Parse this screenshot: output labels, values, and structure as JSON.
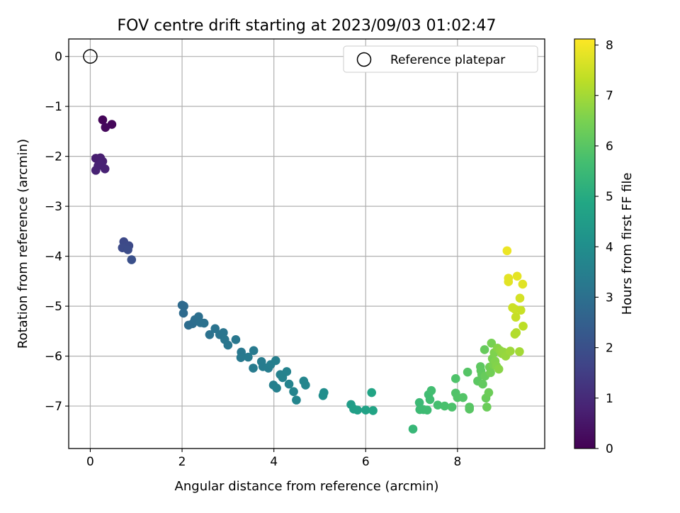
{
  "chart_data": {
    "type": "scatter",
    "title": "FOV centre drift starting at 2023/09/03 01:02:47",
    "xlabel": "Angular distance from reference (arcmin)",
    "ylabel": "Rotation from reference (arcmin)",
    "xlim": [
      -0.47,
      9.9
    ],
    "ylim": [
      -7.85,
      0.35
    ],
    "xticks": [
      0,
      2,
      4,
      6,
      8
    ],
    "xtick_labels": [
      "0",
      "2",
      "4",
      "6",
      "8"
    ],
    "yticks": [
      0,
      -1,
      -2,
      -3,
      -4,
      -5,
      -6,
      -7
    ],
    "ytick_labels": [
      "0",
      "−1",
      "−2",
      "−3",
      "−4",
      "−5",
      "−6",
      "−7"
    ],
    "grid": true,
    "legend": {
      "placement": "top-right",
      "entries": [
        "Reference platepar"
      ]
    },
    "reference_point": {
      "x": 0,
      "y": 0,
      "label": "Reference platepar"
    },
    "colorbar": {
      "label": "Hours from first FF file",
      "range": [
        0,
        8.12
      ],
      "ticks": [
        0,
        1,
        2,
        3,
        4,
        5,
        6,
        7,
        8
      ],
      "tick_labels": [
        "0",
        "1",
        "2",
        "3",
        "4",
        "5",
        "6",
        "7",
        "8"
      ],
      "colormap": "viridis"
    },
    "points": [
      {
        "x": 0.27,
        "y": -1.27,
        "h": 0.1
      },
      {
        "x": 0.47,
        "y": -1.36,
        "h": 0.15
      },
      {
        "x": 0.33,
        "y": -1.42,
        "h": 0.2
      },
      {
        "x": 0.12,
        "y": -2.04,
        "h": 0.7
      },
      {
        "x": 0.22,
        "y": -2.03,
        "h": 0.72
      },
      {
        "x": 0.27,
        "y": -2.1,
        "h": 0.75
      },
      {
        "x": 0.17,
        "y": -2.19,
        "h": 0.78
      },
      {
        "x": 0.32,
        "y": -2.25,
        "h": 0.8
      },
      {
        "x": 0.12,
        "y": -2.28,
        "h": 0.82
      },
      {
        "x": 0.22,
        "y": -2.16,
        "h": 0.8
      },
      {
        "x": 0.73,
        "y": -3.71,
        "h": 1.8
      },
      {
        "x": 0.84,
        "y": -3.79,
        "h": 1.82
      },
      {
        "x": 0.7,
        "y": -3.83,
        "h": 1.85
      },
      {
        "x": 0.82,
        "y": -3.87,
        "h": 1.88
      },
      {
        "x": 0.9,
        "y": -4.07,
        "h": 2.0
      },
      {
        "x": 2.0,
        "y": -4.98,
        "h": 2.8
      },
      {
        "x": 2.04,
        "y": -5.0,
        "h": 2.82
      },
      {
        "x": 2.03,
        "y": -5.14,
        "h": 2.85
      },
      {
        "x": 2.14,
        "y": -5.38,
        "h": 2.9
      },
      {
        "x": 2.23,
        "y": -5.35,
        "h": 2.92
      },
      {
        "x": 2.28,
        "y": -5.27,
        "h": 2.95
      },
      {
        "x": 2.36,
        "y": -5.21,
        "h": 2.97
      },
      {
        "x": 2.4,
        "y": -5.33,
        "h": 3.0
      },
      {
        "x": 2.48,
        "y": -5.34,
        "h": 3.02
      },
      {
        "x": 2.6,
        "y": -5.57,
        "h": 3.05
      },
      {
        "x": 2.72,
        "y": -5.45,
        "h": 3.1
      },
      {
        "x": 2.82,
        "y": -5.57,
        "h": 3.12
      },
      {
        "x": 2.9,
        "y": -5.53,
        "h": 3.15
      },
      {
        "x": 2.93,
        "y": -5.67,
        "h": 3.18
      },
      {
        "x": 3.0,
        "y": -5.78,
        "h": 3.2
      },
      {
        "x": 3.17,
        "y": -5.67,
        "h": 3.22
      },
      {
        "x": 3.29,
        "y": -5.92,
        "h": 3.25
      },
      {
        "x": 3.28,
        "y": -6.03,
        "h": 3.28
      },
      {
        "x": 3.44,
        "y": -6.02,
        "h": 3.3
      },
      {
        "x": 3.56,
        "y": -5.89,
        "h": 3.32
      },
      {
        "x": 3.55,
        "y": -6.24,
        "h": 3.35
      },
      {
        "x": 3.73,
        "y": -6.11,
        "h": 3.38
      },
      {
        "x": 3.76,
        "y": -6.21,
        "h": 3.4
      },
      {
        "x": 3.88,
        "y": -6.24,
        "h": 3.42
      },
      {
        "x": 3.93,
        "y": -6.17,
        "h": 3.45
      },
      {
        "x": 4.04,
        "y": -6.09,
        "h": 3.48
      },
      {
        "x": 3.99,
        "y": -6.58,
        "h": 3.5
      },
      {
        "x": 4.06,
        "y": -6.64,
        "h": 3.52
      },
      {
        "x": 4.14,
        "y": -6.37,
        "h": 3.55
      },
      {
        "x": 4.19,
        "y": -6.43,
        "h": 3.57
      },
      {
        "x": 4.28,
        "y": -6.31,
        "h": 3.6
      },
      {
        "x": 4.33,
        "y": -6.56,
        "h": 3.62
      },
      {
        "x": 4.43,
        "y": -6.71,
        "h": 3.65
      },
      {
        "x": 4.49,
        "y": -6.88,
        "h": 3.68
      },
      {
        "x": 4.65,
        "y": -6.5,
        "h": 3.7
      },
      {
        "x": 4.69,
        "y": -6.58,
        "h": 3.72
      },
      {
        "x": 5.09,
        "y": -6.73,
        "h": 3.95
      },
      {
        "x": 5.07,
        "y": -6.79,
        "h": 3.98
      },
      {
        "x": 5.68,
        "y": -6.97,
        "h": 4.5
      },
      {
        "x": 5.74,
        "y": -7.06,
        "h": 4.55
      },
      {
        "x": 5.82,
        "y": -7.08,
        "h": 4.58
      },
      {
        "x": 6.0,
        "y": -7.08,
        "h": 4.7
      },
      {
        "x": 6.13,
        "y": -6.73,
        "h": 4.75
      },
      {
        "x": 6.16,
        "y": -7.09,
        "h": 4.78
      },
      {
        "x": 7.03,
        "y": -7.46,
        "h": 5.4
      },
      {
        "x": 7.17,
        "y": -6.93,
        "h": 5.5
      },
      {
        "x": 7.18,
        "y": -7.07,
        "h": 5.52
      },
      {
        "x": 7.26,
        "y": -7.07,
        "h": 5.55
      },
      {
        "x": 7.34,
        "y": -7.08,
        "h": 5.57
      },
      {
        "x": 7.37,
        "y": -6.77,
        "h": 5.6
      },
      {
        "x": 7.4,
        "y": -6.87,
        "h": 5.62
      },
      {
        "x": 7.43,
        "y": -6.69,
        "h": 5.65
      },
      {
        "x": 7.57,
        "y": -6.98,
        "h": 5.7
      },
      {
        "x": 7.72,
        "y": -7.0,
        "h": 5.75
      },
      {
        "x": 7.88,
        "y": -7.02,
        "h": 5.8
      },
      {
        "x": 7.96,
        "y": -6.45,
        "h": 5.85
      },
      {
        "x": 7.96,
        "y": -6.74,
        "h": 5.87
      },
      {
        "x": 8.0,
        "y": -6.83,
        "h": 5.9
      },
      {
        "x": 8.12,
        "y": -6.83,
        "h": 5.92
      },
      {
        "x": 8.22,
        "y": -6.32,
        "h": 5.95
      },
      {
        "x": 8.26,
        "y": -7.02,
        "h": 5.97
      },
      {
        "x": 8.26,
        "y": -7.06,
        "h": 6.0
      },
      {
        "x": 8.44,
        "y": -6.5,
        "h": 6.05
      },
      {
        "x": 8.5,
        "y": -6.21,
        "h": 6.08
      },
      {
        "x": 8.51,
        "y": -6.29,
        "h": 6.1
      },
      {
        "x": 8.53,
        "y": -6.37,
        "h": 6.12
      },
      {
        "x": 8.55,
        "y": -6.56,
        "h": 6.15
      },
      {
        "x": 8.59,
        "y": -5.87,
        "h": 6.2
      },
      {
        "x": 8.6,
        "y": -6.4,
        "h": 6.22
      },
      {
        "x": 8.62,
        "y": -6.84,
        "h": 6.25
      },
      {
        "x": 8.64,
        "y": -7.02,
        "h": 6.28
      },
      {
        "x": 8.68,
        "y": -6.73,
        "h": 6.3
      },
      {
        "x": 8.7,
        "y": -6.22,
        "h": 6.35
      },
      {
        "x": 8.72,
        "y": -6.33,
        "h": 6.38
      },
      {
        "x": 8.74,
        "y": -5.74,
        "h": 6.45
      },
      {
        "x": 8.76,
        "y": -6.05,
        "h": 6.48
      },
      {
        "x": 8.78,
        "y": -6.17,
        "h": 6.5
      },
      {
        "x": 8.8,
        "y": -5.93,
        "h": 6.55
      },
      {
        "x": 8.82,
        "y": -6.1,
        "h": 6.58
      },
      {
        "x": 8.85,
        "y": -6.2,
        "h": 6.6
      },
      {
        "x": 8.87,
        "y": -5.84,
        "h": 6.65
      },
      {
        "x": 8.9,
        "y": -6.26,
        "h": 6.68
      },
      {
        "x": 8.93,
        "y": -5.89,
        "h": 6.72
      },
      {
        "x": 8.97,
        "y": -5.95,
        "h": 6.78
      },
      {
        "x": 9.0,
        "y": -5.92,
        "h": 6.82
      },
      {
        "x": 9.05,
        "y": -6.0,
        "h": 6.85
      },
      {
        "x": 9.15,
        "y": -5.9,
        "h": 6.92
      },
      {
        "x": 9.35,
        "y": -5.91,
        "h": 7.0
      },
      {
        "x": 9.08,
        "y": -3.89,
        "h": 7.9
      },
      {
        "x": 9.11,
        "y": -4.44,
        "h": 7.8
      },
      {
        "x": 9.11,
        "y": -4.51,
        "h": 7.78
      },
      {
        "x": 9.3,
        "y": -4.4,
        "h": 7.82
      },
      {
        "x": 9.42,
        "y": -4.56,
        "h": 7.75
      },
      {
        "x": 9.36,
        "y": -4.84,
        "h": 7.6
      },
      {
        "x": 9.2,
        "y": -5.03,
        "h": 7.5
      },
      {
        "x": 9.25,
        "y": -5.06,
        "h": 7.48
      },
      {
        "x": 9.38,
        "y": -5.08,
        "h": 7.45
      },
      {
        "x": 9.27,
        "y": -5.22,
        "h": 7.42
      },
      {
        "x": 9.28,
        "y": -5.53,
        "h": 7.2
      },
      {
        "x": 9.25,
        "y": -5.56,
        "h": 7.18
      },
      {
        "x": 9.43,
        "y": -5.4,
        "h": 7.3
      }
    ]
  }
}
